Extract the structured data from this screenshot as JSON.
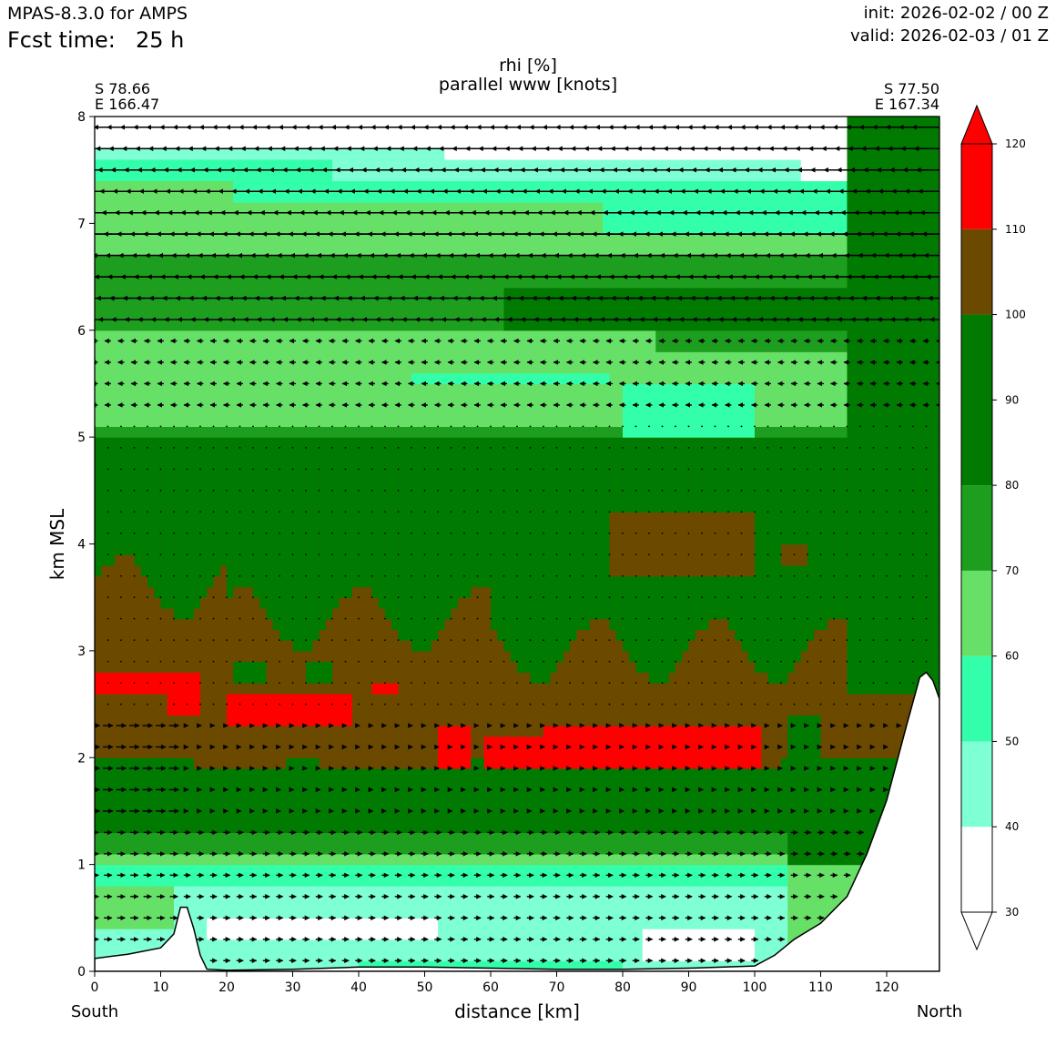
{
  "header": {
    "model": "MPAS-8.3.0 for AMPS",
    "fcst_label": "Fcst time:",
    "fcst_value": "25 h",
    "init": "init: 2026-02-02 / 00 Z",
    "valid": "valid: 2026-02-03 / 01 Z"
  },
  "chart_data": {
    "type": "heatmap",
    "title": "rhi [%]",
    "subtitle": "parallel www [knots]",
    "xlabel": "distance [km]",
    "ylabel": "km MSL",
    "xlim": [
      0,
      128
    ],
    "ylim": [
      0,
      8
    ],
    "x_ticks": [
      0,
      10,
      20,
      30,
      40,
      50,
      60,
      70,
      80,
      90,
      100,
      110,
      120
    ],
    "y_ticks": [
      0,
      1,
      2,
      3,
      4,
      5,
      6,
      7,
      8
    ],
    "left_end": {
      "direction": "South",
      "lat": "S 78.66",
      "lon": "E 166.47"
    },
    "right_end": {
      "direction": "North",
      "lat": "S 77.50",
      "lon": "E 167.34"
    },
    "colorbar": {
      "ticks": [
        30,
        40,
        50,
        60,
        70,
        80,
        90,
        100,
        110,
        120
      ],
      "levels": [
        {
          "min": 30,
          "max": 40,
          "color": "#ffffff"
        },
        {
          "min": 40,
          "max": 50,
          "color": "#7fffd4"
        },
        {
          "min": 50,
          "max": 60,
          "color": "#33ffaa"
        },
        {
          "min": 60,
          "max": 70,
          "color": "#66e066"
        },
        {
          "min": 70,
          "max": 80,
          "color": "#1e9e1e"
        },
        {
          "min": 80,
          "max": 100,
          "color": "#007a00"
        },
        {
          "min": 100,
          "max": 110,
          "color": "#6b4a00"
        },
        {
          "min": 110,
          "max": 120,
          "color": "#ff0000"
        }
      ],
      "extend": "both"
    },
    "terrain": [
      [
        0,
        0.12
      ],
      [
        5,
        0.16
      ],
      [
        10,
        0.22
      ],
      [
        12,
        0.35
      ],
      [
        13,
        0.6
      ],
      [
        14,
        0.6
      ],
      [
        15,
        0.4
      ],
      [
        16,
        0.15
      ],
      [
        17,
        0.02
      ],
      [
        20,
        0.01
      ],
      [
        30,
        0.02
      ],
      [
        40,
        0.04
      ],
      [
        50,
        0.04
      ],
      [
        60,
        0.03
      ],
      [
        70,
        0.02
      ],
      [
        80,
        0.02
      ],
      [
        90,
        0.03
      ],
      [
        100,
        0.05
      ],
      [
        103,
        0.15
      ],
      [
        106,
        0.3
      ],
      [
        110,
        0.45
      ],
      [
        114,
        0.7
      ],
      [
        117,
        1.1
      ],
      [
        120,
        1.6
      ],
      [
        123,
        2.3
      ],
      [
        125,
        2.75
      ],
      [
        126,
        2.8
      ],
      [
        127,
        2.72
      ],
      [
        128,
        2.55
      ]
    ]
  }
}
